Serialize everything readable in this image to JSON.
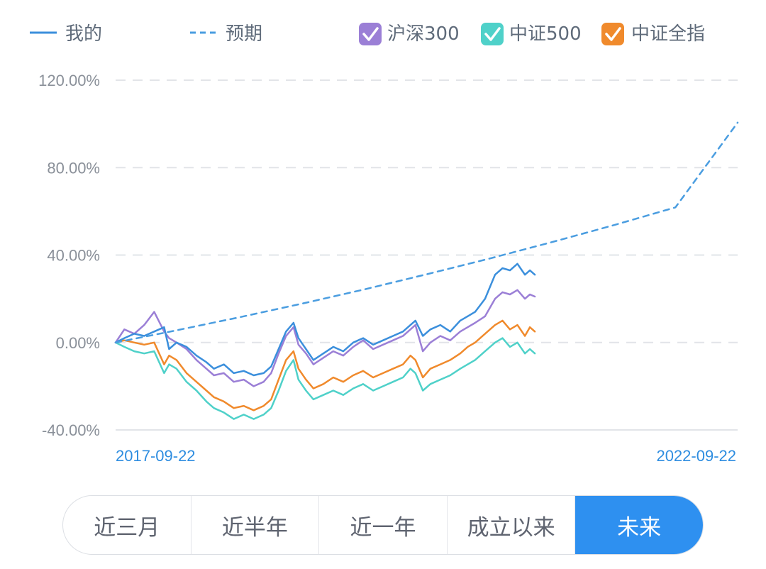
{
  "legend": {
    "mine_label": "我的",
    "expected_label": "预期",
    "hs300_label": "沪深300",
    "zz500_label": "中证500",
    "zzqz_label": "中证全指"
  },
  "range_tabs": {
    "t1": "近三月",
    "t2": "近半年",
    "t3": "近一年",
    "t4": "成立以来",
    "t5": "未来",
    "active": "未来"
  },
  "colors": {
    "mine": "#3b8fdc",
    "expected": "#4a9de0",
    "hs300": "#9b7fd6",
    "zz500": "#4fd1c9",
    "zzqz": "#f08a2c",
    "grid": "#e2e4e8",
    "accent": "#2e90f0"
  },
  "chart_data": {
    "type": "line",
    "title": "",
    "xlabel": "",
    "ylabel": "",
    "x_start": "2017-09-22",
    "x_end": "2022-09-22",
    "x_range_years": [
      2017.73,
      2022.73
    ],
    "y_unit": "%",
    "ylim": [
      -40,
      120
    ],
    "yticks": [
      "120.00%",
      "80.00%",
      "40.00%",
      "0.00%",
      "-40.00%"
    ],
    "ytick_values": [
      120,
      80,
      40,
      0,
      -40
    ],
    "grid": true,
    "legend_position": "top",
    "series": [
      {
        "name": "我的",
        "key": "mine",
        "dashed": false,
        "checkbox": false,
        "x": [
          2017.73,
          2017.8,
          2017.88,
          2017.96,
          2018.04,
          2018.12,
          2018.16,
          2018.22,
          2018.3,
          2018.38,
          2018.46,
          2018.52,
          2018.6,
          2018.68,
          2018.76,
          2018.84,
          2018.92,
          2018.98,
          2019.04,
          2019.1,
          2019.16,
          2019.2,
          2019.26,
          2019.32,
          2019.4,
          2019.48,
          2019.56,
          2019.64,
          2019.72,
          2019.8,
          2019.88,
          2019.96,
          2020.04,
          2020.1,
          2020.14,
          2020.2,
          2020.26,
          2020.34,
          2020.42,
          2020.5,
          2020.56,
          2020.62,
          2020.7,
          2020.78,
          2020.84,
          2020.9,
          2020.96,
          2021.02,
          2021.06,
          2021.1
        ],
        "y": [
          0,
          2,
          4,
          3,
          5,
          7,
          -3,
          0,
          -2,
          -6,
          -9,
          -12,
          -10,
          -14,
          -13,
          -15,
          -14,
          -11,
          -3,
          5,
          9,
          2,
          -3,
          -8,
          -5,
          -2,
          -4,
          0,
          2,
          -1,
          1,
          3,
          5,
          8,
          10,
          3,
          6,
          8,
          5,
          10,
          12,
          14,
          20,
          31,
          34,
          33,
          36,
          31,
          33,
          31
        ]
      },
      {
        "name": "预期",
        "key": "expected",
        "dashed": true,
        "checkbox": false,
        "x": [
          2017.73,
          2018.23,
          2018.73,
          2019.23,
          2019.73,
          2020.23,
          2020.73,
          2021.23,
          2021.73,
          2022.23,
          2022.73
        ],
        "y": [
          0,
          5.7,
          11.6,
          17.8,
          24.3,
          31.2,
          38.3,
          45.8,
          53.6,
          61.8,
          100.6
        ]
      },
      {
        "name": "沪深300",
        "key": "hs300",
        "dashed": false,
        "checkbox": true,
        "x": [
          2017.73,
          2017.8,
          2017.88,
          2017.96,
          2018.04,
          2018.12,
          2018.16,
          2018.22,
          2018.3,
          2018.38,
          2018.46,
          2018.52,
          2018.6,
          2018.68,
          2018.76,
          2018.84,
          2018.92,
          2018.98,
          2019.04,
          2019.1,
          2019.16,
          2019.2,
          2019.26,
          2019.32,
          2019.4,
          2019.48,
          2019.56,
          2019.64,
          2019.72,
          2019.8,
          2019.88,
          2019.96,
          2020.04,
          2020.1,
          2020.14,
          2020.2,
          2020.26,
          2020.34,
          2020.42,
          2020.5,
          2020.56,
          2020.62,
          2020.7,
          2020.78,
          2020.84,
          2020.9,
          2020.96,
          2021.02,
          2021.06,
          2021.1
        ],
        "y": [
          0,
          6,
          4,
          8,
          14,
          5,
          2,
          0,
          -3,
          -8,
          -12,
          -15,
          -14,
          -18,
          -17,
          -20,
          -18,
          -14,
          -5,
          3,
          7,
          -1,
          -5,
          -10,
          -7,
          -4,
          -6,
          -2,
          1,
          -3,
          -1,
          1,
          3,
          6,
          8,
          -4,
          0,
          3,
          1,
          5,
          7,
          9,
          12,
          20,
          23,
          22,
          24,
          20,
          22,
          21
        ]
      },
      {
        "name": "中证500",
        "key": "zz500",
        "dashed": false,
        "checkbox": true,
        "x": [
          2017.73,
          2017.8,
          2017.88,
          2017.96,
          2018.04,
          2018.12,
          2018.16,
          2018.22,
          2018.3,
          2018.38,
          2018.46,
          2018.52,
          2018.6,
          2018.68,
          2018.76,
          2018.84,
          2018.92,
          2018.98,
          2019.04,
          2019.1,
          2019.16,
          2019.2,
          2019.26,
          2019.32,
          2019.4,
          2019.48,
          2019.56,
          2019.64,
          2019.72,
          2019.8,
          2019.88,
          2019.96,
          2020.04,
          2020.1,
          2020.14,
          2020.2,
          2020.26,
          2020.34,
          2020.42,
          2020.5,
          2020.56,
          2020.62,
          2020.7,
          2020.78,
          2020.84,
          2020.9,
          2020.96,
          2021.02,
          2021.06,
          2021.1
        ],
        "y": [
          0,
          -2,
          -4,
          -5,
          -4,
          -14,
          -10,
          -12,
          -18,
          -22,
          -27,
          -30,
          -32,
          -35,
          -33,
          -35,
          -33,
          -30,
          -22,
          -13,
          -8,
          -17,
          -22,
          -26,
          -24,
          -22,
          -24,
          -21,
          -19,
          -22,
          -20,
          -18,
          -16,
          -12,
          -14,
          -22,
          -19,
          -17,
          -15,
          -12,
          -10,
          -8,
          -4,
          0,
          2,
          -2,
          0,
          -5,
          -3,
          -5
        ]
      },
      {
        "name": "中证全指",
        "key": "zzqz",
        "dashed": false,
        "checkbox": true,
        "x": [
          2017.73,
          2017.8,
          2017.88,
          2017.96,
          2018.04,
          2018.12,
          2018.16,
          2018.22,
          2018.3,
          2018.38,
          2018.46,
          2018.52,
          2018.6,
          2018.68,
          2018.76,
          2018.84,
          2018.92,
          2018.98,
          2019.04,
          2019.1,
          2019.16,
          2019.2,
          2019.26,
          2019.32,
          2019.4,
          2019.48,
          2019.56,
          2019.64,
          2019.72,
          2019.8,
          2019.88,
          2019.96,
          2020.04,
          2020.1,
          2020.14,
          2020.2,
          2020.26,
          2020.34,
          2020.42,
          2020.5,
          2020.56,
          2020.62,
          2020.7,
          2020.78,
          2020.84,
          2020.9,
          2020.96,
          2021.02,
          2021.06,
          2021.1
        ],
        "y": [
          0,
          1,
          0,
          -1,
          0,
          -10,
          -6,
          -8,
          -14,
          -18,
          -22,
          -25,
          -27,
          -30,
          -29,
          -31,
          -29,
          -26,
          -17,
          -8,
          -4,
          -12,
          -17,
          -21,
          -19,
          -16,
          -18,
          -15,
          -13,
          -16,
          -14,
          -12,
          -10,
          -6,
          -8,
          -16,
          -12,
          -10,
          -8,
          -5,
          -2,
          0,
          4,
          8,
          10,
          6,
          8,
          3,
          7,
          5
        ]
      }
    ]
  }
}
